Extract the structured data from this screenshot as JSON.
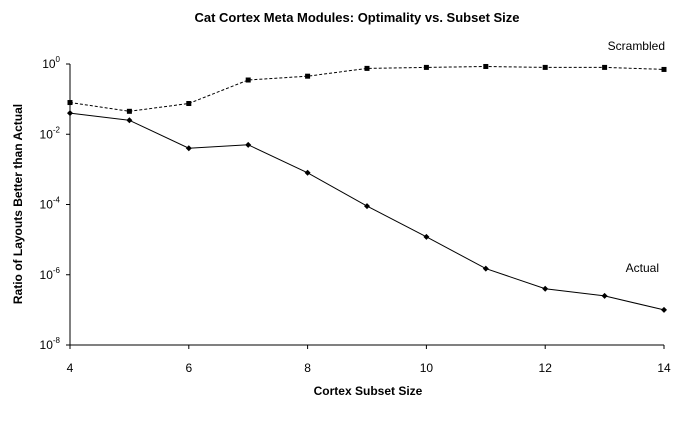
{
  "chart_data": {
    "type": "line",
    "title": "Cat Cortex Meta Modules:  Optimality vs. Subset Size",
    "xlabel": "Cortex Subset Size",
    "ylabel": "Ratio of Layouts Better than Actual",
    "xlim": [
      4,
      14
    ],
    "x_ticks": [
      "4",
      "6",
      "8",
      "10",
      "12",
      "14"
    ],
    "y_scale": "log",
    "ylim": [
      1e-08,
      1
    ],
    "y_ticks": [
      {
        "base": "10",
        "exp": "0"
      },
      {
        "base": "10",
        "exp": "-2"
      },
      {
        "base": "10",
        "exp": "-4"
      },
      {
        "base": "10",
        "exp": "-6"
      },
      {
        "base": "10",
        "exp": "-8"
      }
    ],
    "grid": false,
    "legend": "none",
    "x": [
      4,
      5,
      6,
      7,
      8,
      9,
      10,
      11,
      12,
      13,
      14
    ],
    "series": [
      {
        "name": "Scrambled",
        "color": "#000000",
        "line_style": "dashed",
        "marker": "square",
        "values": [
          0.08,
          0.045,
          0.075,
          0.35,
          0.45,
          0.75,
          0.8,
          0.85,
          0.8,
          0.8,
          0.7
        ]
      },
      {
        "name": "Actual",
        "color": "#000000",
        "line_style": "solid",
        "marker": "diamond",
        "values": [
          0.04,
          0.025,
          0.004,
          0.005,
          0.0008,
          9e-05,
          1.2e-05,
          1.5e-06,
          4e-07,
          2.5e-07,
          1e-07
        ]
      }
    ]
  }
}
